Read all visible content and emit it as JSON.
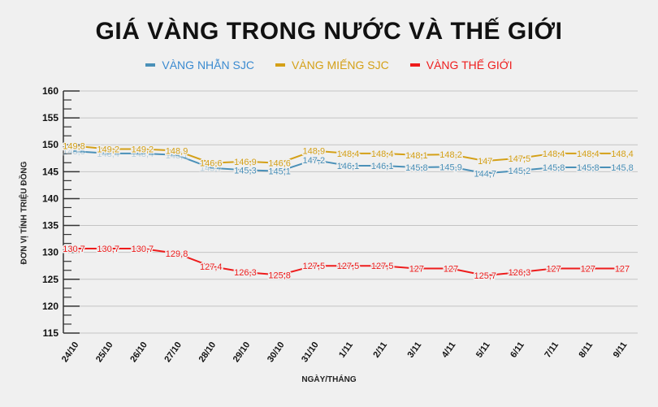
{
  "chart_data": {
    "type": "line",
    "title": "GIÁ VÀNG TRONG NƯỚC VÀ THẾ GIỚI",
    "xlabel": "NGÀY/THÁNG",
    "ylabel": "ĐƠN VỊ TÍNH TRIỆU ĐỒNG",
    "ylim": [
      115,
      160
    ],
    "yticks": [
      115,
      120,
      125,
      130,
      135,
      140,
      145,
      150,
      155,
      160
    ],
    "grid": true,
    "legend": "top",
    "categories": [
      "24/10",
      "25/10",
      "26/10",
      "27/10",
      "28/10",
      "29/10",
      "30/10",
      "31/10",
      "1/11",
      "2/11",
      "3/11",
      "4/11",
      "5/11",
      "6/11",
      "7/11",
      "8/11",
      "9/11"
    ],
    "series": [
      {
        "name": "VÀNG NHẪN SJC",
        "color": "#4a90b8",
        "values": [
          148.8,
          148.4,
          148.4,
          148.1,
          145.7,
          145.3,
          145.1,
          147.2,
          146.1,
          146.1,
          145.8,
          145.9,
          144.7,
          145.2,
          145.8,
          145.8,
          145.8
        ],
        "labels_hidden": [
          0,
          1,
          2,
          3,
          4
        ]
      },
      {
        "name": "VÀNG MIẾNG SJC",
        "color": "#d4a017",
        "values": [
          149.8,
          149.2,
          149.2,
          148.9,
          146.6,
          146.9,
          146.6,
          148.9,
          148.4,
          148.4,
          148.1,
          148.2,
          147,
          147.5,
          148.4,
          148.4,
          148.4
        ]
      },
      {
        "name": "VÀNG THẾ GIỚI",
        "color": "#ee1c1c",
        "values": [
          130.7,
          130.7,
          130.7,
          129.8,
          127.4,
          126.3,
          125.8,
          127.5,
          127.5,
          127.5,
          127,
          127,
          125.7,
          126.3,
          127,
          127,
          127
        ]
      }
    ]
  }
}
